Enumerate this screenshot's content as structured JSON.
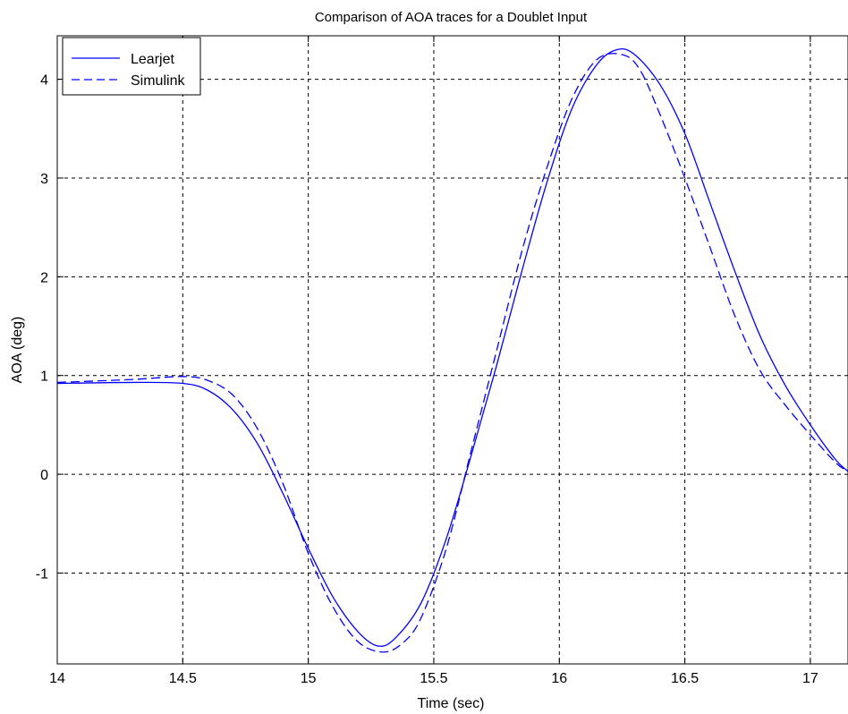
{
  "chart_data": {
    "type": "line",
    "title": "Comparison of AOA traces for a Doublet Input",
    "xlabel": "Time (sec)",
    "ylabel": "AOA (deg)",
    "xlim": [
      14,
      17.15
    ],
    "ylim": [
      -1.92,
      4.44
    ],
    "xticks": [
      14,
      14.5,
      15,
      15.5,
      16,
      16.5,
      17
    ],
    "xtick_labels": [
      "14",
      "14.5",
      "15",
      "15.5",
      "16",
      "16.5",
      "17"
    ],
    "yticks": [
      -1,
      0,
      1,
      2,
      3,
      4
    ],
    "ytick_labels": [
      "-1",
      "0",
      "1",
      "2",
      "3",
      "4"
    ],
    "grid": true,
    "legend_position": "top-left",
    "series": [
      {
        "name": "Learjet",
        "style": "solid",
        "color": "#0000ff",
        "x": [
          14.0,
          14.3,
          14.5,
          14.6,
          14.7,
          14.8,
          14.9,
          15.0,
          15.1,
          15.2,
          15.28,
          15.35,
          15.45,
          15.55,
          15.65,
          15.75,
          15.85,
          15.95,
          16.05,
          16.15,
          16.23,
          16.3,
          16.4,
          16.5,
          16.6,
          16.7,
          16.8,
          16.9,
          17.0,
          17.1,
          17.15
        ],
        "y": [
          0.92,
          0.93,
          0.92,
          0.85,
          0.65,
          0.3,
          -0.2,
          -0.75,
          -1.25,
          -1.6,
          -1.74,
          -1.65,
          -1.3,
          -0.65,
          0.2,
          1.1,
          2.05,
          2.95,
          3.7,
          4.15,
          4.3,
          4.25,
          3.95,
          3.45,
          2.75,
          2.05,
          1.4,
          0.9,
          0.5,
          0.15,
          0.03
        ]
      },
      {
        "name": "Simulink",
        "style": "dashed",
        "color": "#0000ff",
        "x": [
          14.0,
          14.3,
          14.5,
          14.6,
          14.7,
          14.8,
          14.9,
          15.0,
          15.1,
          15.2,
          15.3,
          15.38,
          15.45,
          15.55,
          15.65,
          15.75,
          15.85,
          15.95,
          16.05,
          16.15,
          16.25,
          16.32,
          16.4,
          16.5,
          16.6,
          16.7,
          16.8,
          16.9,
          17.0,
          17.1,
          17.15
        ],
        "y": [
          0.93,
          0.96,
          0.99,
          0.95,
          0.8,
          0.45,
          -0.1,
          -0.8,
          -1.35,
          -1.7,
          -1.8,
          -1.7,
          -1.45,
          -0.75,
          0.25,
          1.25,
          2.25,
          3.1,
          3.8,
          4.2,
          4.25,
          4.1,
          3.65,
          3.0,
          2.3,
          1.6,
          1.05,
          0.7,
          0.4,
          0.12,
          0.03
        ]
      }
    ]
  }
}
